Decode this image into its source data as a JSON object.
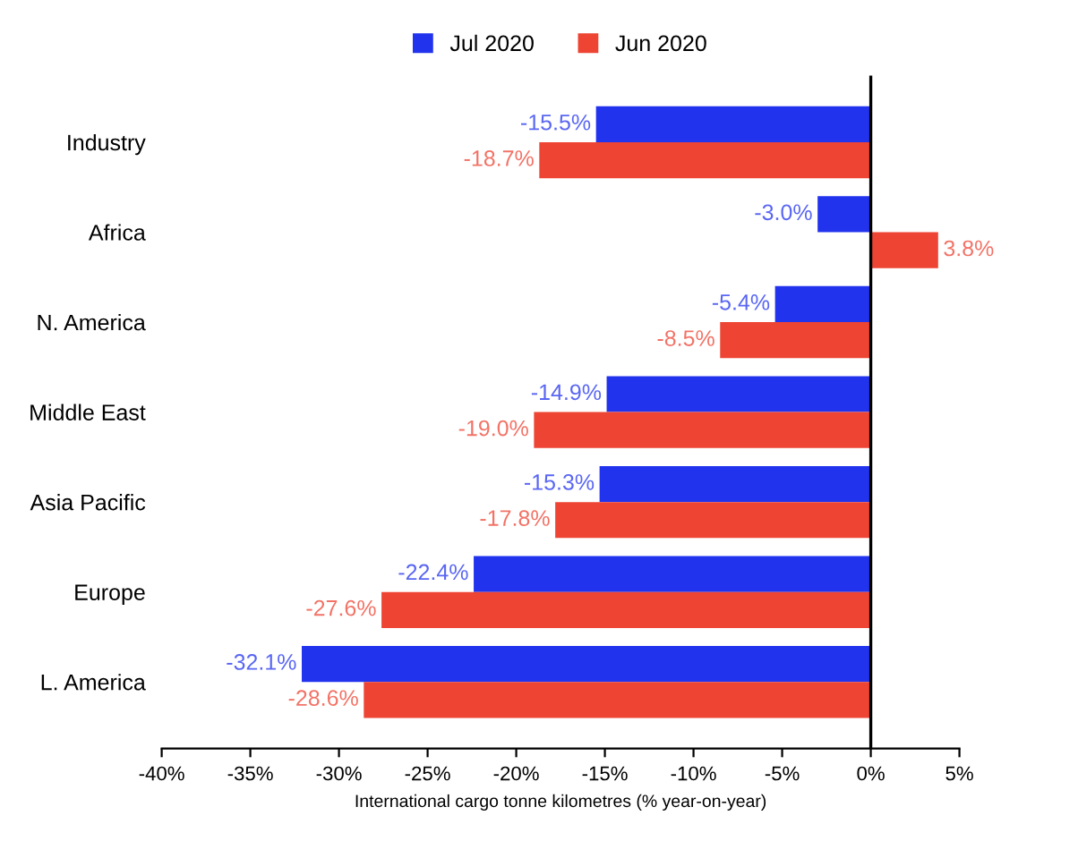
{
  "chart_data": {
    "type": "bar",
    "orientation": "horizontal",
    "xlabel": "International cargo tonne kilometres (% year-on-year)",
    "categories": [
      "Industry",
      "Africa",
      "N. America",
      "Middle East",
      "Asia Pacific",
      "Europe",
      "L. America"
    ],
    "series": [
      {
        "name": "Jul 2020",
        "color": "#2233ee",
        "values": [
          -15.5,
          -3.0,
          -5.4,
          -14.9,
          -15.3,
          -22.4,
          -32.1
        ],
        "value_labels": [
          "-15.5%",
          "-3.0%",
          "-5.4%",
          "-14.9%",
          "-15.3%",
          "-22.4%",
          "-32.1%"
        ]
      },
      {
        "name": "Jun 2020",
        "color": "#ee4433",
        "values": [
          -18.7,
          3.8,
          -8.5,
          -19.0,
          -17.8,
          -27.6,
          -28.6
        ],
        "value_labels": [
          "-18.7%",
          "3.8%",
          "-8.5%",
          "-19.0%",
          "-17.8%",
          "-27.6%",
          "-28.6%"
        ]
      }
    ],
    "xlim": [
      -40,
      5
    ],
    "xticks": [
      {
        "value": -40,
        "label": "-40%"
      },
      {
        "value": -35,
        "label": "-35%"
      },
      {
        "value": -30,
        "label": "-30%"
      },
      {
        "value": -25,
        "label": "-25%"
      },
      {
        "value": -20,
        "label": "-20%"
      },
      {
        "value": -15,
        "label": "-15%"
      },
      {
        "value": -10,
        "label": "-10%"
      },
      {
        "value": -5,
        "label": "-5%"
      },
      {
        "value": 0,
        "label": "0%"
      },
      {
        "value": 5,
        "label": "5%"
      }
    ],
    "ref_lines": [
      {
        "axis": "x",
        "value": 0,
        "color": "#000000"
      }
    ],
    "legend": "top"
  }
}
